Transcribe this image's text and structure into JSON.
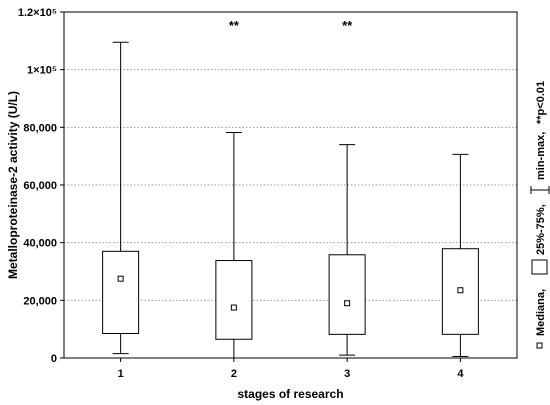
{
  "chart_data": {
    "type": "boxplot",
    "title": "",
    "xlabel": "stages of research",
    "ylabel": "Metalloproteinase-2 activity (U/L)",
    "categories": [
      "1",
      "2",
      "3",
      "4"
    ],
    "ylim": [
      0,
      120000
    ],
    "yticks": [
      0,
      20000,
      40000,
      60000,
      80000,
      100000,
      120000
    ],
    "ytick_labels": [
      "0",
      "20,000",
      "40,000",
      "60,000",
      "80,000",
      "1×10⁵",
      "1.2×10⁵"
    ],
    "grid": "horizontal dotted",
    "boxes": [
      {
        "stage": "1",
        "min": 1500,
        "q1": 8500,
        "median": 27500,
        "q3": 37000,
        "max": 109500,
        "annotation": ""
      },
      {
        "stage": "2",
        "min": 0,
        "q1": 6500,
        "median": 17500,
        "q3": 33800,
        "max": 78200,
        "annotation": "**"
      },
      {
        "stage": "3",
        "min": 1000,
        "q1": 8200,
        "median": 19000,
        "q3": 35800,
        "max": 74000,
        "annotation": "**"
      },
      {
        "stage": "4",
        "min": 500,
        "q1": 8200,
        "median": 23500,
        "q3": 37900,
        "max": 70600,
        "annotation": ""
      }
    ],
    "legend": {
      "placement": "right, vertical",
      "median": "Mediana,",
      "iqr": "25%-75%,",
      "range": "min-max,",
      "significance": "**p<0.01"
    }
  }
}
